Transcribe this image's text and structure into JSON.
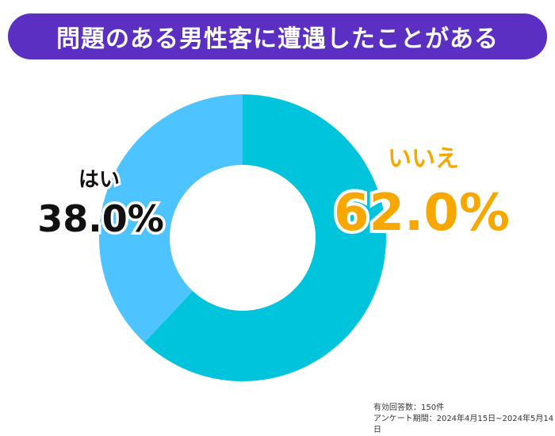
{
  "title": "問題のある男性客に遭遇したことがある",
  "colors": {
    "title_bg": "#5a2fc2",
    "yes": "#4dc3ff",
    "no": "#00c4dc",
    "no_label": "#f7a800",
    "yes_label": "#111111"
  },
  "chart_data": {
    "type": "pie",
    "title": "問題のある男性客に遭遇したことがある",
    "slices": [
      {
        "label": "いいえ",
        "value": 62.0,
        "display": "62.0%"
      },
      {
        "label": "はい",
        "value": 38.0,
        "display": "38.0%"
      }
    ]
  },
  "footer": {
    "responses": "有効回答数：150件",
    "period": "アンケート期間：2024年4月15日~2024年5月14日"
  }
}
